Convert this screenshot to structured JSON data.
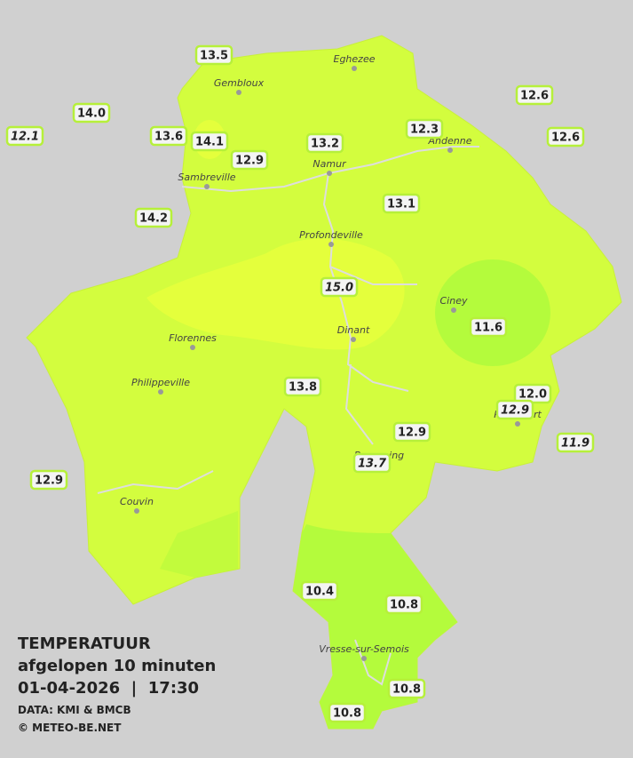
{
  "legend": {
    "title": "TEMPERATUUR",
    "subtitle": "afgelopen 10 minuten",
    "datetime": "01-04-2026  |  17:30",
    "source": "DATA: KMI & BMCB",
    "copyright": "© METEO-BE.NET"
  },
  "cities": [
    "Eghezee",
    "Gembloux",
    "Andenne",
    "Namur",
    "Sambreville",
    "Profondeville",
    "Ciney",
    "Florennes",
    "Dinant",
    "Philippeville",
    "Couvin",
    "Vresse-sur-Semois",
    "Rochefort",
    "Beauraing"
  ],
  "stations": [
    {
      "label": "13.5",
      "italic": false
    },
    {
      "label": "14.0",
      "italic": false
    },
    {
      "label": "12.1",
      "italic": true
    },
    {
      "label": "13.6",
      "italic": false
    },
    {
      "label": "14.1",
      "italic": false
    },
    {
      "label": "12.9",
      "italic": false
    },
    {
      "label": "13.2",
      "italic": false
    },
    {
      "label": "12.3",
      "italic": false
    },
    {
      "label": "12.6",
      "italic": false
    },
    {
      "label": "12.6",
      "italic": false
    },
    {
      "label": "14.2",
      "italic": false
    },
    {
      "label": "13.1",
      "italic": false
    },
    {
      "label": "15.0",
      "italic": true
    },
    {
      "label": "11.6",
      "italic": false
    },
    {
      "label": "13.8",
      "italic": false
    },
    {
      "label": "12.0",
      "italic": false
    },
    {
      "label": "12.9",
      "italic": true
    },
    {
      "label": "12.9",
      "italic": false
    },
    {
      "label": "11.9",
      "italic": true
    },
    {
      "label": "13.7",
      "italic": true
    },
    {
      "label": "12.9",
      "italic": false
    },
    {
      "label": "10.4",
      "italic": false
    },
    {
      "label": "10.8",
      "italic": false
    },
    {
      "label": "10.8",
      "italic": false
    },
    {
      "label": "10.8",
      "italic": false
    }
  ]
}
